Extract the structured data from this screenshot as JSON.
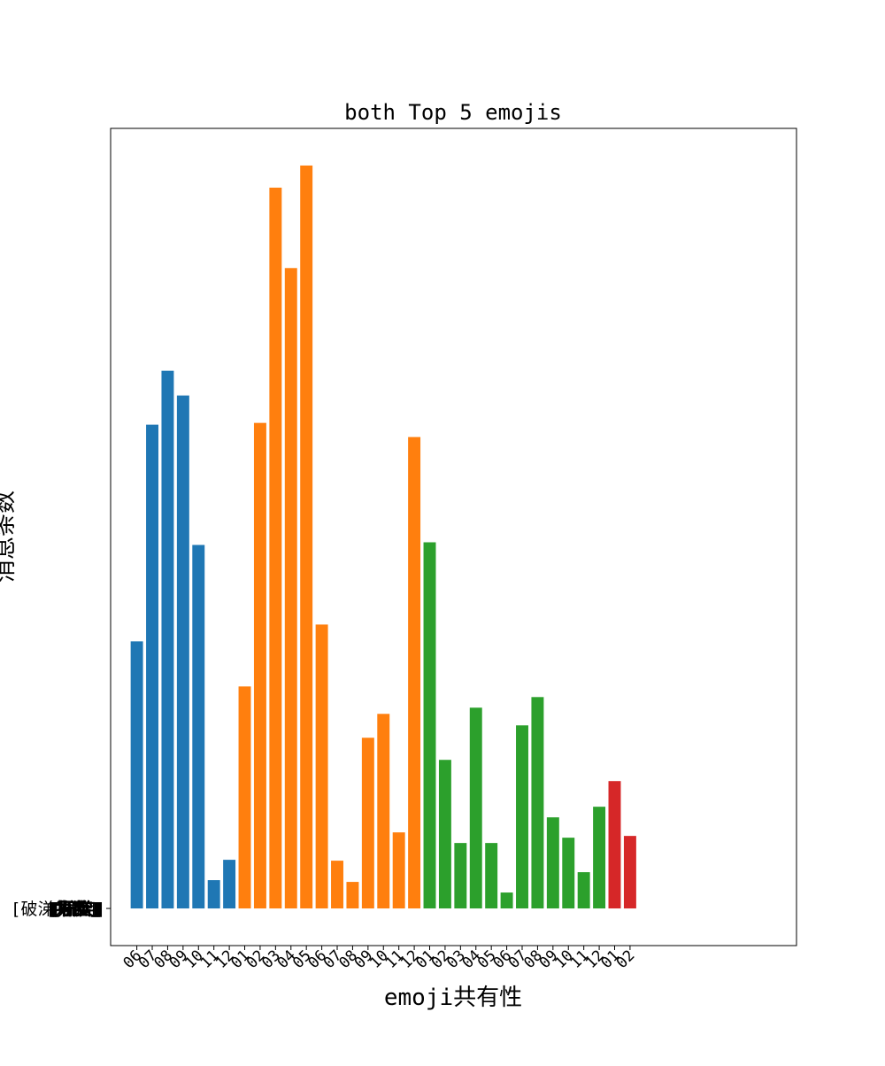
{
  "chart_data": {
    "type": "bar",
    "title": "both Top 5 emojis",
    "xlabel": "emoji共有性",
    "ylabel": "消息条数",
    "ytick_labels": [
      "[破涕为笑]",
      "[捂脸]",
      "[奸笑]",
      "[机智]",
      "[偷笑]"
    ],
    "grid": false,
    "categories": [
      "06",
      "07",
      "08",
      "09",
      "10",
      "11",
      "12",
      "01",
      "02",
      "03",
      "04",
      "05",
      "06",
      "07",
      "08",
      "09",
      "10",
      "11",
      "12",
      "01",
      "02",
      "03",
      "04",
      "05",
      "06",
      "07",
      "08",
      "09",
      "10",
      "11",
      "12",
      "01",
      "02"
    ],
    "values": [
      302,
      547,
      608,
      580,
      411,
      32,
      55,
      251,
      549,
      815,
      724,
      840,
      321,
      54,
      30,
      193,
      220,
      86,
      533,
      414,
      168,
      74,
      227,
      74,
      18,
      207,
      239,
      103,
      80,
      41,
      115,
      144,
      82
    ],
    "colors": [
      "#1f77b4",
      "#1f77b4",
      "#1f77b4",
      "#1f77b4",
      "#1f77b4",
      "#1f77b4",
      "#1f77b4",
      "#ff7f0e",
      "#ff7f0e",
      "#ff7f0e",
      "#ff7f0e",
      "#ff7f0e",
      "#ff7f0e",
      "#ff7f0e",
      "#ff7f0e",
      "#ff7f0e",
      "#ff7f0e",
      "#ff7f0e",
      "#ff7f0e",
      "#2ca02c",
      "#2ca02c",
      "#2ca02c",
      "#2ca02c",
      "#2ca02c",
      "#2ca02c",
      "#2ca02c",
      "#2ca02c",
      "#2ca02c",
      "#2ca02c",
      "#2ca02c",
      "#2ca02c",
      "#d62728",
      "#d62728"
    ],
    "ylim": [
      -42,
      882
    ],
    "xlim": [
      -1.7,
      42.8
    ]
  }
}
